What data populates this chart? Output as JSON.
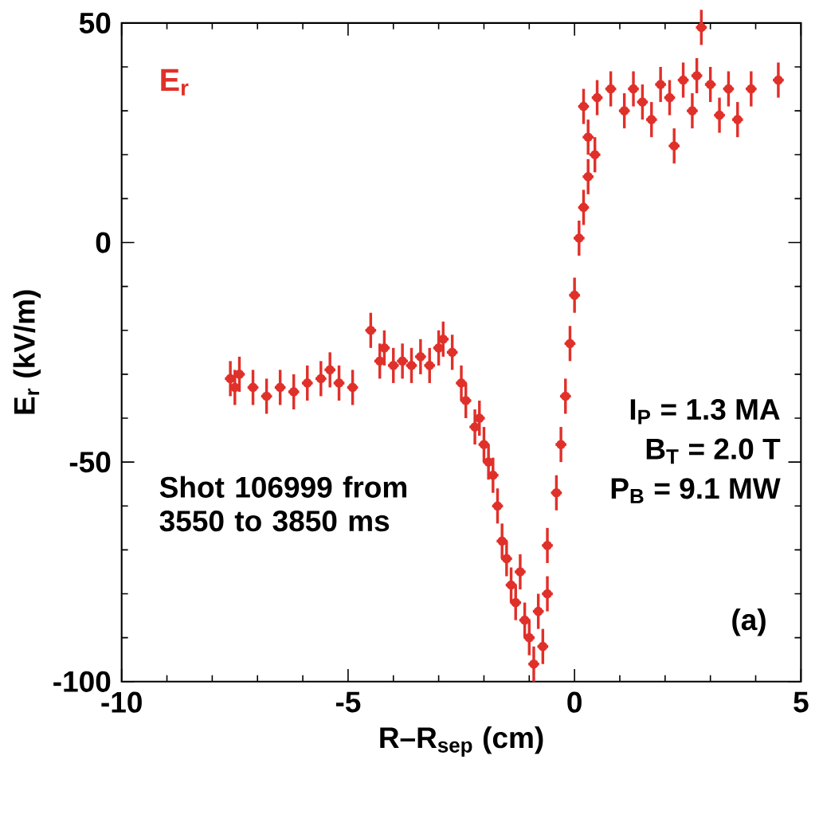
{
  "chart_data": {
    "type": "scatter",
    "xlabel": "R–R$_{sep}$ (cm)",
    "ylabel": "E$_{r}$ (kV/m)",
    "xlim": [
      -10,
      5
    ],
    "ylim": [
      -100,
      50
    ],
    "xticks": [
      -10,
      -5,
      0,
      5
    ],
    "yticks": [
      -100,
      -50,
      0,
      50
    ],
    "legend": false,
    "grid": false,
    "annotations": [
      "Shot 106999 from 3550 to 3850 ms",
      "I$_{P}$ = 1.3 MA",
      "B$_{T}$ = 2.0 T",
      "P$_{B}$ = 9.1 MW",
      "(a)"
    ],
    "series": [
      {
        "name": "E$_{r}$",
        "color": "#e0302a",
        "x": [
          -7.6,
          -7.5,
          -7.4,
          -7.1,
          -6.8,
          -6.5,
          -6.2,
          -5.9,
          -5.6,
          -5.4,
          -5.2,
          -4.9,
          -4.5,
          -4.3,
          -4.2,
          -4.0,
          -3.8,
          -3.6,
          -3.4,
          -3.2,
          -3.0,
          -2.9,
          -2.7,
          -2.5,
          -2.4,
          -2.2,
          -2.1,
          -2.0,
          -1.9,
          -1.8,
          -1.7,
          -1.6,
          -1.5,
          -1.4,
          -1.3,
          -1.2,
          -1.1,
          -1.0,
          -0.9,
          -0.8,
          -0.7,
          -0.6,
          -0.6,
          -0.4,
          -0.3,
          -0.2,
          -0.1,
          0.0,
          0.1,
          0.2,
          0.3,
          0.3,
          0.45,
          0.2,
          0.5,
          0.8,
          1.1,
          1.3,
          1.5,
          1.7,
          1.9,
          2.1,
          2.2,
          2.4,
          2.6,
          2.7,
          2.8,
          3.0,
          3.2,
          3.4,
          3.6,
          3.9,
          4.5
        ],
        "values": [
          -31,
          -33,
          -30,
          -33,
          -35,
          -33,
          -34,
          -32,
          -31,
          -29,
          -32,
          -33,
          -20,
          -27,
          -24,
          -28,
          -27,
          -28,
          -26,
          -28,
          -24,
          -22,
          -25,
          -32,
          -36,
          -42,
          -40,
          -46,
          -50,
          -53,
          -60,
          -68,
          -72,
          -78,
          -82,
          -75,
          -86,
          -90,
          -96,
          -84,
          -92,
          -69,
          -80,
          -57,
          -46,
          -35,
          -23,
          -12,
          1,
          8,
          15,
          24,
          20,
          31,
          33,
          35,
          30,
          35,
          32,
          28,
          36,
          33,
          22,
          37,
          30,
          38,
          49,
          36,
          29,
          35,
          28,
          35,
          37
        ],
        "errors": [
          4,
          4,
          4,
          4,
          4,
          4,
          4,
          4,
          4,
          4,
          4,
          4,
          4,
          4,
          4,
          4,
          4,
          4,
          4,
          4,
          4,
          4,
          4,
          4,
          4,
          4,
          4,
          4,
          4,
          4,
          4,
          4,
          4,
          4,
          4,
          4,
          4,
          4,
          4,
          4,
          4,
          4,
          4,
          4,
          4,
          4,
          4,
          4,
          4,
          4,
          4,
          4,
          4,
          4,
          4,
          4,
          4,
          4,
          4,
          4,
          4,
          4,
          4,
          4,
          4,
          4,
          4,
          4,
          4,
          4,
          4,
          4,
          4
        ],
        "xerrors": [
          0.12,
          0.12,
          0.12,
          0.12,
          0.12,
          0.12,
          0.12,
          0.12,
          0.12,
          0.12,
          0.12,
          0.12,
          0.12,
          0.12,
          0.12,
          0.12,
          0.12,
          0.12,
          0.12,
          0.12,
          0.12,
          0.12,
          0.12,
          0.12,
          0.12,
          0.12,
          0.12,
          0.12,
          0.12,
          0.12,
          0.12,
          0.12,
          0.12,
          0.12,
          0.12,
          0.12,
          0.12,
          0.12,
          0.12,
          0.12,
          0.12,
          0.12,
          0.12,
          0.12,
          0.12,
          0.12,
          0.12,
          0.12,
          0.12,
          0.12,
          0.12,
          0.12,
          0.12,
          0.12,
          0.12,
          0.12,
          0.12,
          0.12,
          0.12,
          0.12,
          0.12,
          0.12,
          0.12,
          0.12,
          0.12,
          0.12,
          0.12,
          0.12,
          0.12,
          0.12,
          0.12,
          0.12,
          0.12
        ]
      }
    ]
  }
}
